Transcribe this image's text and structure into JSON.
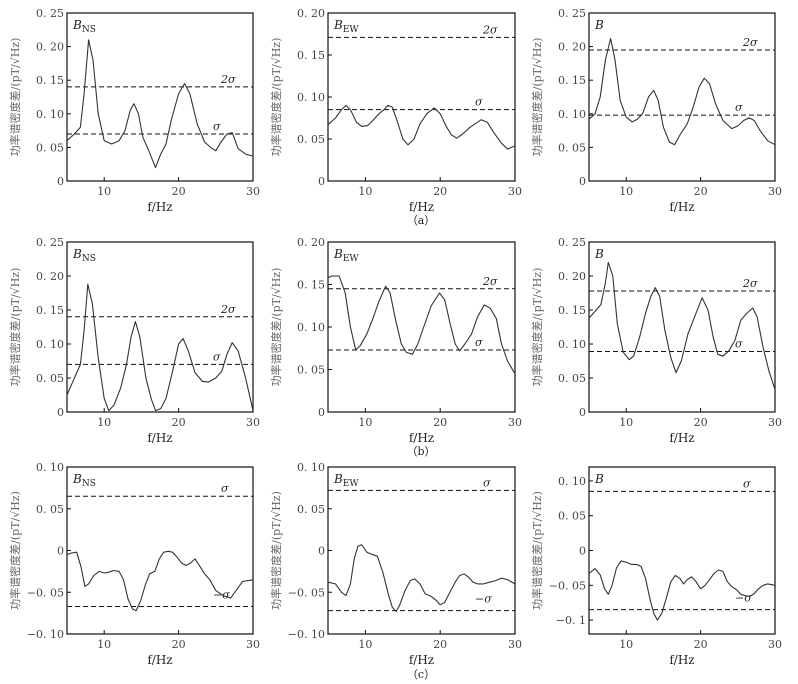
{
  "chart_data": [
    {
      "type": "line",
      "row": "a",
      "title": "B",
      "title_sub": "NS",
      "xlabel": "f/Hz",
      "ylabel": "功率谱密度差/(pT/√Hz)",
      "xlim": [
        5,
        30
      ],
      "ylim": [
        0,
        0.25
      ],
      "xticks": [
        10,
        20,
        30
      ],
      "xtick_labels": [
        "10",
        "20",
        "30"
      ],
      "yticks": [
        0,
        0.05,
        0.1,
        0.15,
        0.2,
        0.25
      ],
      "ytick_labels": [
        "0",
        "0. 05",
        "0. 10",
        "0. 15",
        "0. 20",
        "0. 25"
      ],
      "ref_lines": [
        {
          "label": "2σ",
          "value": 0.14
        },
        {
          "label": "σ",
          "value": 0.07
        }
      ],
      "series": [
        {
          "name": "B_NS",
          "x": [
            5,
            6,
            6.8,
            7.3,
            7.9,
            8.5,
            9.2,
            10,
            11,
            12,
            12.8,
            13.5,
            14,
            14.6,
            15.2,
            16,
            16.9,
            17.6,
            18.3,
            19,
            20,
            20.8,
            21.5,
            22.5,
            23.5,
            24.3,
            25,
            25.7,
            26.5,
            27.2,
            28,
            29,
            30
          ],
          "y": [
            0.06,
            0.07,
            0.08,
            0.13,
            0.21,
            0.18,
            0.1,
            0.06,
            0.055,
            0.06,
            0.075,
            0.105,
            0.115,
            0.1,
            0.065,
            0.045,
            0.02,
            0.04,
            0.055,
            0.09,
            0.13,
            0.145,
            0.13,
            0.085,
            0.058,
            0.05,
            0.045,
            0.058,
            0.07,
            0.072,
            0.048,
            0.04,
            0.037
          ]
        }
      ]
    },
    {
      "type": "line",
      "row": "a",
      "title": "B",
      "title_sub": "EW",
      "xlabel": "f/Hz",
      "ylabel": "功率谱密度差/(pT/√Hz)",
      "xlim": [
        5,
        30
      ],
      "ylim": [
        0,
        0.2
      ],
      "xticks": [
        10,
        20,
        30
      ],
      "xtick_labels": [
        "10",
        "20",
        "30"
      ],
      "yticks": [
        0,
        0.05,
        0.1,
        0.15,
        0.2
      ],
      "ytick_labels": [
        "0",
        "0. 05",
        "0. 10",
        "0. 15",
        "0. 20"
      ],
      "ref_lines": [
        {
          "label": "2σ",
          "value": 0.171
        },
        {
          "label": "σ",
          "value": 0.085
        }
      ],
      "series": [
        {
          "name": "B_EW",
          "x": [
            5,
            6,
            6.8,
            7.4,
            8,
            8.8,
            9.5,
            10.3,
            11,
            11.8,
            12.5,
            13,
            13.6,
            14.3,
            15,
            15.7,
            16.5,
            17.3,
            18.2,
            19.2,
            20,
            20.8,
            21.5,
            22.2,
            23,
            24,
            25,
            25.5,
            26.3,
            27.2,
            28.2,
            29,
            30
          ],
          "y": [
            0.067,
            0.075,
            0.085,
            0.09,
            0.085,
            0.07,
            0.065,
            0.066,
            0.072,
            0.08,
            0.085,
            0.09,
            0.088,
            0.07,
            0.05,
            0.043,
            0.05,
            0.068,
            0.08,
            0.087,
            0.08,
            0.065,
            0.055,
            0.051,
            0.056,
            0.064,
            0.07,
            0.073,
            0.07,
            0.057,
            0.045,
            0.038,
            0.042
          ]
        }
      ]
    },
    {
      "type": "line",
      "row": "a",
      "title": "B",
      "title_sub": "",
      "xlabel": "f/Hz",
      "ylabel": "功率谱密度差/(pT/√Hz)",
      "xlim": [
        5,
        30
      ],
      "ylim": [
        0,
        0.25
      ],
      "xticks": [
        10,
        20,
        30
      ],
      "xtick_labels": [
        "10",
        "20",
        "30"
      ],
      "yticks": [
        0,
        0.05,
        0.1,
        0.15,
        0.2,
        0.25
      ],
      "ytick_labels": [
        "0",
        "0. 05",
        "0. 10",
        "0. 15",
        "0. 20",
        "0. 25"
      ],
      "ref_lines": [
        {
          "label": "2σ",
          "value": 0.195
        },
        {
          "label": "σ",
          "value": 0.098
        }
      ],
      "series": [
        {
          "name": "B",
          "x": [
            5,
            5.8,
            6.5,
            7.2,
            7.9,
            8.5,
            9.2,
            10,
            10.8,
            11.5,
            12.2,
            13,
            13.7,
            14.3,
            15,
            15.8,
            16.5,
            17.3,
            18.2,
            19,
            19.8,
            20.5,
            21.2,
            22,
            23,
            24.2,
            25,
            25.8,
            26.5,
            27.2,
            28,
            29,
            30
          ],
          "y": [
            0.092,
            0.1,
            0.125,
            0.18,
            0.212,
            0.18,
            0.12,
            0.095,
            0.088,
            0.092,
            0.1,
            0.125,
            0.135,
            0.12,
            0.08,
            0.058,
            0.054,
            0.07,
            0.085,
            0.11,
            0.14,
            0.153,
            0.145,
            0.115,
            0.09,
            0.078,
            0.082,
            0.09,
            0.094,
            0.09,
            0.075,
            0.06,
            0.054
          ]
        }
      ]
    },
    {
      "type": "line",
      "row": "b",
      "title": "B",
      "title_sub": "NS",
      "xlabel": "f/Hz",
      "ylabel": "功率谱密度差/(pT/√Hz)",
      "xlim": [
        5,
        30
      ],
      "ylim": [
        0,
        0.25
      ],
      "xticks": [
        10,
        20,
        30
      ],
      "xtick_labels": [
        "10",
        "20",
        "30"
      ],
      "yticks": [
        0,
        0.05,
        0.1,
        0.15,
        0.2,
        0.25
      ],
      "ytick_labels": [
        "0",
        "0. 05",
        "0. 10",
        "0. 15",
        "0. 20",
        "0. 25"
      ],
      "ref_lines": [
        {
          "label": "2σ",
          "value": 0.14
        },
        {
          "label": "σ",
          "value": 0.07
        }
      ],
      "series": [
        {
          "name": "B_NS",
          "x": [
            5,
            6,
            6.8,
            7.3,
            7.8,
            8.4,
            9.2,
            10,
            10.6,
            11.3,
            12.2,
            13,
            13.6,
            14.2,
            14.8,
            15.6,
            16.3,
            16.9,
            17.6,
            18.3,
            19.2,
            20,
            20.6,
            21.3,
            22.2,
            23.2,
            24,
            25,
            25.8,
            26.5,
            27.2,
            28,
            29,
            30
          ],
          "y": [
            0.025,
            0.05,
            0.07,
            0.12,
            0.188,
            0.16,
            0.08,
            0.02,
            0.002,
            0.01,
            0.035,
            0.07,
            0.11,
            0.133,
            0.11,
            0.05,
            0.02,
            0.002,
            0.005,
            0.02,
            0.06,
            0.1,
            0.108,
            0.09,
            0.058,
            0.045,
            0.044,
            0.05,
            0.06,
            0.085,
            0.102,
            0.09,
            0.05,
            0.002
          ]
        }
      ]
    },
    {
      "type": "line",
      "row": "b",
      "title": "B",
      "title_sub": "EW",
      "xlabel": "f/Hz",
      "ylabel": "功率谱密度差/(pT/√Hz)",
      "xlim": [
        5,
        30
      ],
      "ylim": [
        0,
        0.2
      ],
      "xticks": [
        10,
        20,
        30
      ],
      "xtick_labels": [
        "10",
        "20",
        "30"
      ],
      "yticks": [
        0,
        0.05,
        0.1,
        0.15,
        0.2
      ],
      "ytick_labels": [
        "0",
        "0. 05",
        "0. 10",
        "0. 15",
        "0. 20"
      ],
      "ref_lines": [
        {
          "label": "2σ",
          "value": 0.145
        },
        {
          "label": "σ",
          "value": 0.073
        }
      ],
      "series": [
        {
          "name": "B_EW",
          "x": [
            5,
            5.5,
            6.5,
            7.3,
            8,
            8.7,
            9.3,
            10.2,
            11,
            11.8,
            12.7,
            13.3,
            14,
            14.8,
            15.5,
            16.3,
            17,
            17.8,
            18.8,
            19.9,
            20.6,
            21.3,
            22,
            22.6,
            23.3,
            24.2,
            25,
            25.9,
            26.7,
            27.5,
            28.2,
            29,
            30
          ],
          "y": [
            0.158,
            0.16,
            0.16,
            0.14,
            0.1,
            0.073,
            0.078,
            0.092,
            0.11,
            0.13,
            0.148,
            0.14,
            0.11,
            0.08,
            0.07,
            0.068,
            0.08,
            0.1,
            0.125,
            0.14,
            0.132,
            0.105,
            0.08,
            0.072,
            0.08,
            0.092,
            0.112,
            0.126,
            0.122,
            0.11,
            0.08,
            0.06,
            0.045
          ]
        }
      ]
    },
    {
      "type": "line",
      "row": "b",
      "title": "B",
      "title_sub": "",
      "xlabel": "f/Hz",
      "ylabel": "功率谱密度差/(pT/√Hz)",
      "xlim": [
        5,
        30
      ],
      "ylim": [
        0,
        0.25
      ],
      "xticks": [
        10,
        20,
        30
      ],
      "xtick_labels": [
        "10",
        "20",
        "30"
      ],
      "yticks": [
        0,
        0.05,
        0.1,
        0.15,
        0.2,
        0.25
      ],
      "ytick_labels": [
        "0",
        "0. 05",
        "0. 10",
        "0. 15",
        "0. 20",
        "0. 25"
      ],
      "ref_lines": [
        {
          "label": "2σ",
          "value": 0.178
        },
        {
          "label": "σ",
          "value": 0.089
        }
      ],
      "series": [
        {
          "name": "B",
          "x": [
            5,
            5.8,
            6.6,
            7.2,
            7.6,
            8.2,
            8.8,
            9.6,
            10.4,
            11,
            11.8,
            12.6,
            13.3,
            13.9,
            14.5,
            15.2,
            16,
            16.7,
            17.4,
            18.3,
            19.2,
            20.2,
            21,
            21.7,
            22.3,
            23,
            23.8,
            24.6,
            25.4,
            26.2,
            27,
            27.6,
            28.4,
            29.2,
            30
          ],
          "y": [
            0.138,
            0.148,
            0.158,
            0.19,
            0.22,
            0.2,
            0.13,
            0.088,
            0.077,
            0.082,
            0.11,
            0.145,
            0.17,
            0.183,
            0.17,
            0.12,
            0.08,
            0.058,
            0.075,
            0.115,
            0.14,
            0.168,
            0.15,
            0.11,
            0.085,
            0.082,
            0.09,
            0.105,
            0.135,
            0.145,
            0.153,
            0.14,
            0.095,
            0.06,
            0.033
          ]
        }
      ]
    },
    {
      "type": "line",
      "row": "c",
      "title": "B",
      "title_sub": "NS",
      "xlabel": "f/Hz",
      "ylabel": "功率谱密度差/(pT/√Hz)",
      "xlim": [
        5,
        30
      ],
      "ylim": [
        -0.1,
        0.1
      ],
      "xticks": [
        10,
        20,
        30
      ],
      "xtick_labels": [
        "10",
        "20",
        "30"
      ],
      "yticks": [
        -0.1,
        -0.05,
        0,
        0.05,
        0.1
      ],
      "ytick_labels": [
        "−0. 10",
        "−0. 05",
        "0",
        "0. 05",
        "0. 10"
      ],
      "ref_lines": [
        {
          "label": "σ",
          "value": 0.065
        },
        {
          "label": "−σ",
          "value": -0.067
        }
      ],
      "series": [
        {
          "name": "B_NS",
          "x": [
            5,
            5.6,
            6.3,
            6.9,
            7.4,
            7.9,
            8.6,
            9.3,
            10,
            10.6,
            11.3,
            12,
            12.6,
            13.2,
            13.8,
            14.3,
            14.9,
            15.5,
            16.1,
            16.8,
            17.4,
            18,
            18.6,
            19.2,
            19.8,
            20.4,
            21,
            21.6,
            22.2,
            22.8,
            23.4,
            24.2,
            25,
            26,
            27,
            27.8,
            28.6,
            29.4,
            30
          ],
          "y": [
            -0.005,
            -0.003,
            -0.002,
            -0.02,
            -0.043,
            -0.04,
            -0.03,
            -0.025,
            -0.027,
            -0.026,
            -0.024,
            -0.025,
            -0.035,
            -0.058,
            -0.07,
            -0.072,
            -0.06,
            -0.042,
            -0.028,
            -0.025,
            -0.01,
            -0.002,
            -0.001,
            -0.002,
            -0.008,
            -0.015,
            -0.018,
            -0.015,
            -0.01,
            -0.018,
            -0.027,
            -0.035,
            -0.048,
            -0.054,
            -0.057,
            -0.047,
            -0.037,
            -0.036,
            -0.035
          ]
        }
      ]
    },
    {
      "type": "line",
      "row": "c",
      "title": "B",
      "title_sub": "EW",
      "xlabel": "f/Hz",
      "ylabel": "功率谱密度差/(pT/√Hz)",
      "xlim": [
        5,
        30
      ],
      "ylim": [
        -0.1,
        0.1
      ],
      "xticks": [
        10,
        20,
        30
      ],
      "xtick_labels": [
        "10",
        "20",
        "30"
      ],
      "yticks": [
        -0.1,
        -0.05,
        0,
        0.05,
        0.1
      ],
      "ytick_labels": [
        "−0. 10",
        "−0. 05",
        "0",
        "0. 05",
        "0. 10"
      ],
      "ref_lines": [
        {
          "label": "σ",
          "value": 0.072
        },
        {
          "label": "−σ",
          "value": -0.072
        }
      ],
      "series": [
        {
          "name": "B_EW",
          "x": [
            5,
            6,
            6.8,
            7.4,
            8,
            8.5,
            9,
            9.5,
            10.2,
            11,
            11.6,
            12.3,
            13,
            13.6,
            14.1,
            14.6,
            15.3,
            16,
            16.6,
            17.3,
            18,
            18.8,
            19.5,
            20,
            20.6,
            21.3,
            22,
            22.6,
            23.2,
            23.8,
            24.4,
            25,
            25.8,
            26.6,
            27.4,
            28.2,
            29,
            30
          ],
          "y": [
            -0.038,
            -0.04,
            -0.05,
            -0.054,
            -0.04,
            -0.01,
            0.005,
            0.007,
            -0.002,
            -0.005,
            -0.007,
            -0.025,
            -0.05,
            -0.068,
            -0.073,
            -0.065,
            -0.048,
            -0.036,
            -0.034,
            -0.04,
            -0.052,
            -0.055,
            -0.06,
            -0.065,
            -0.062,
            -0.05,
            -0.038,
            -0.03,
            -0.028,
            -0.032,
            -0.038,
            -0.04,
            -0.04,
            -0.038,
            -0.036,
            -0.033,
            -0.035,
            -0.04
          ]
        }
      ]
    },
    {
      "type": "line",
      "row": "c",
      "title": "B",
      "title_sub": "",
      "xlabel": "f/Hz",
      "ylabel": "功率谱密度差/(pT/√Hz)",
      "xlim": [
        5,
        30
      ],
      "ylim": [
        -0.12,
        0.12
      ],
      "xticks": [
        10,
        20,
        30
      ],
      "xtick_labels": [
        "10",
        "20",
        "30"
      ],
      "yticks": [
        -0.1,
        -0.05,
        0,
        0.05,
        0.1
      ],
      "ytick_labels": [
        "−0. 1",
        "−0. 05",
        "0",
        "0. 05",
        "0. 10"
      ],
      "ref_lines": [
        {
          "label": "σ",
          "value": 0.085
        },
        {
          "label": "−σ",
          "value": -0.085
        }
      ],
      "series": [
        {
          "name": "B",
          "x": [
            5,
            5.8,
            6.5,
            7.1,
            7.6,
            8.1,
            8.7,
            9.3,
            10,
            10.7,
            11.4,
            12,
            12.6,
            13.2,
            13.7,
            14.2,
            14.8,
            15.4,
            16,
            16.6,
            17.2,
            17.7,
            18.2,
            18.8,
            19.4,
            20,
            20.6,
            21.2,
            21.8,
            22.4,
            23,
            23.6,
            24.2,
            24.8,
            25.4,
            26,
            26.6,
            27.2,
            27.8,
            28.4,
            29,
            30
          ],
          "y": [
            -0.033,
            -0.026,
            -0.035,
            -0.055,
            -0.063,
            -0.05,
            -0.025,
            -0.015,
            -0.017,
            -0.02,
            -0.02,
            -0.023,
            -0.04,
            -0.07,
            -0.09,
            -0.1,
            -0.09,
            -0.068,
            -0.045,
            -0.036,
            -0.04,
            -0.048,
            -0.042,
            -0.038,
            -0.045,
            -0.055,
            -0.05,
            -0.042,
            -0.033,
            -0.028,
            -0.03,
            -0.045,
            -0.052,
            -0.056,
            -0.063,
            -0.065,
            -0.066,
            -0.062,
            -0.055,
            -0.05,
            -0.048,
            -0.05
          ]
        }
      ]
    }
  ],
  "row_labels": [
    "（a）",
    "（b）",
    "（c）"
  ],
  "colors": {
    "curve": "#333333",
    "ref": "#111111",
    "axis": "#111111"
  }
}
